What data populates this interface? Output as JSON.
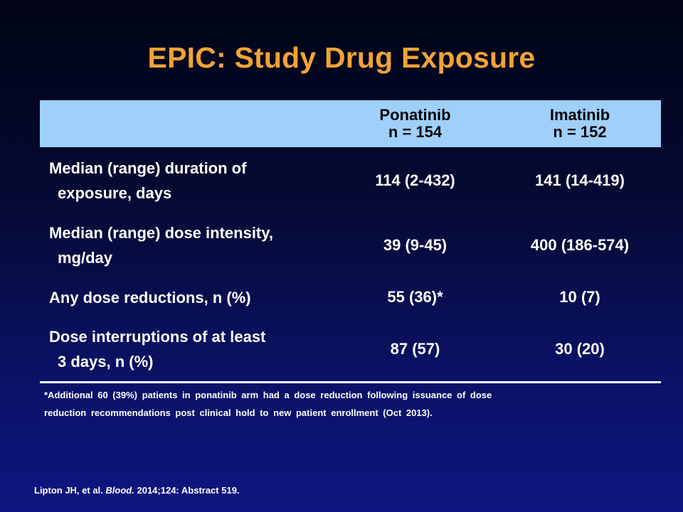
{
  "slide": {
    "title": "EPIC: Study Drug Exposure"
  },
  "table": {
    "columns": [
      {
        "name": "Ponatinib",
        "n": "n = 154"
      },
      {
        "name": "Imatinib",
        "n": "n = 152"
      }
    ],
    "rows": [
      {
        "label_line1": "Median (range) duration of",
        "label_line2": "exposure, days",
        "ponatinib": "114 (2-432)",
        "imatinib": "141 (14-419)"
      },
      {
        "label_line1": "Median (range) dose intensity,",
        "label_line2": "mg/day",
        "ponatinib": "39 (9-45)",
        "imatinib": "400 (186-574)"
      },
      {
        "label_line1": "Any dose reductions, n (%)",
        "label_line2": "",
        "ponatinib": "55 (36)*",
        "imatinib": "10 (7)"
      },
      {
        "label_line1": "Dose interruptions of at least",
        "label_line2": "3 days, n (%)",
        "ponatinib": "87 (57)",
        "imatinib": "30 (20)"
      }
    ],
    "colors": {
      "header_bg": "#9fd0fa",
      "rule": "#ffffff"
    }
  },
  "footnote": {
    "line1": "*Additional 60 (39%) patients in ponatinib arm had a dose reduction following issuance of dose",
    "line2": "reduction recommendations post clinical hold to new patient enrollment (Oct 2013)."
  },
  "citation": {
    "authors": "Lipton JH, et al.",
    "journal": "Blood.",
    "details": "2014;124: Abstract 519."
  },
  "colors": {
    "title": "#f2a336",
    "text": "#ffffff",
    "background": "#0b1268"
  }
}
